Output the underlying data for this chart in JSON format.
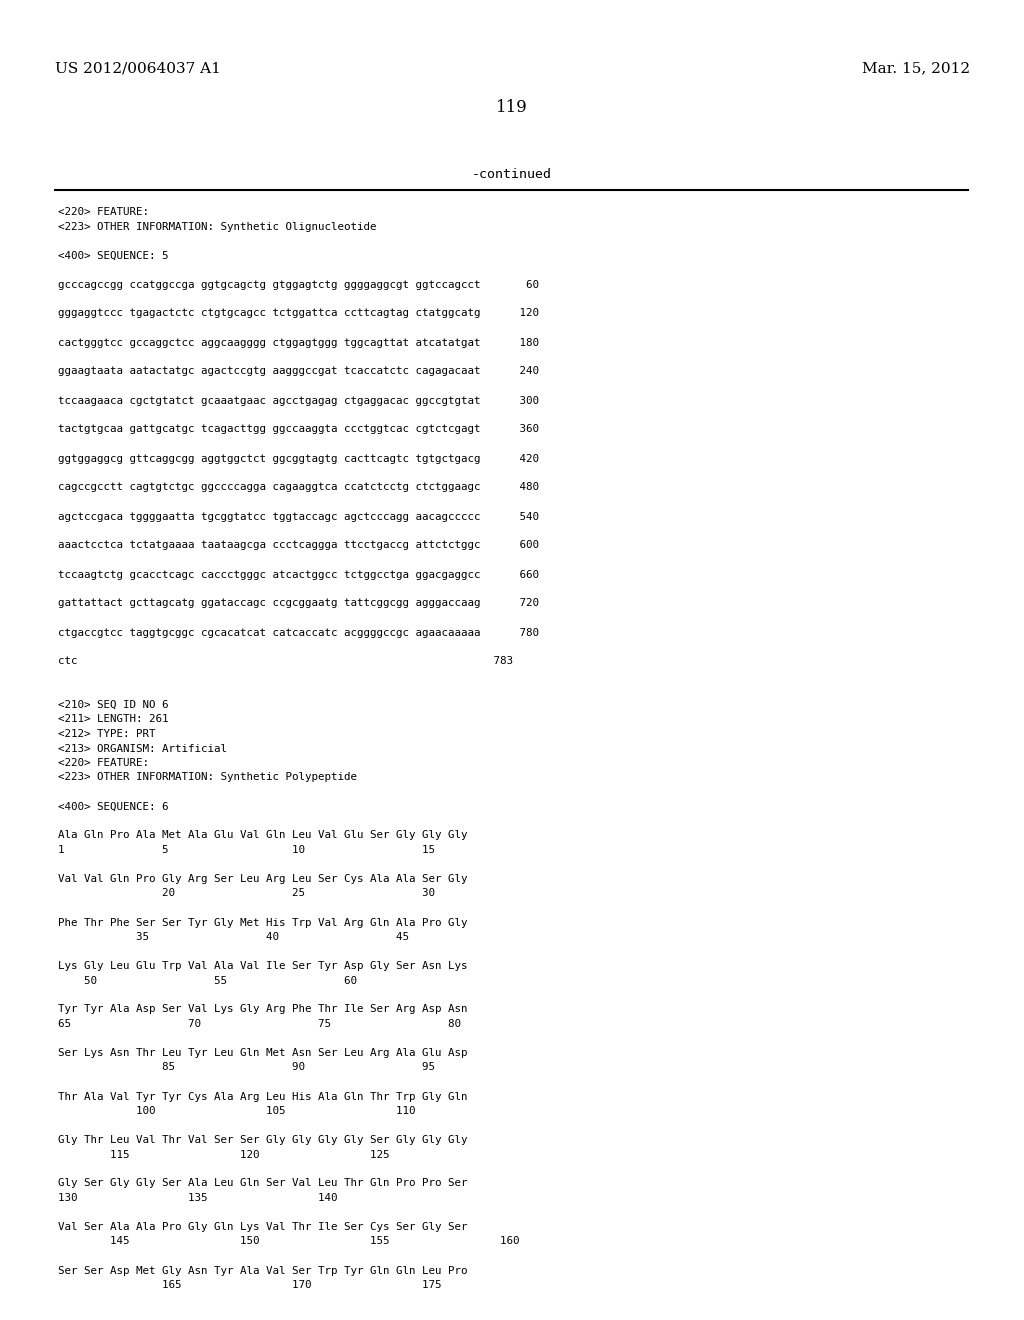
{
  "header_left": "US 2012/0064037 A1",
  "header_right": "Mar. 15, 2012",
  "page_number": "119",
  "continued_label": "-continued",
  "background_color": "#ffffff",
  "text_color": "#000000",
  "content_lines": [
    "<220> FEATURE:",
    "<223> OTHER INFORMATION: Synthetic Olignucleotide",
    "",
    "<400> SEQUENCE: 5",
    "",
    "gcccagccgg ccatggccga ggtgcagctg gtggagtctg ggggaggcgt ggtccagcct       60",
    "",
    "gggaggtccc tgagactctc ctgtgcagcc tctggattca ccttcagtag ctatggcatg      120",
    "",
    "cactgggtcc gccaggctcc aggcaagggg ctggagtggg tggcagttat atcatatgat      180",
    "",
    "ggaagtaata aatactatgc agactccgtg aagggccgat tcaccatctc cagagacaat      240",
    "",
    "tccaagaaca cgctgtatct gcaaatgaac agcctgagag ctgaggacac ggccgtgtat      300",
    "",
    "tactgtgcaa gattgcatgc tcagacttgg ggccaaggta ccctggtcac cgtctcgagt      360",
    "",
    "ggtggaggcg gttcaggcgg aggtggctct ggcggtagtg cacttcagtc tgtgctgacg      420",
    "",
    "cagccgcctt cagtgtctgc ggccccagga cagaaggtca ccatctcctg ctctggaagc      480",
    "",
    "agctccgaca tggggaatta tgcggtatcc tggtaccagc agctcccagg aacagccccc      540",
    "",
    "aaactcctca tctatgaaaa taataagcga ccctcaggga ttcctgaccg attctctggc      600",
    "",
    "tccaagtctg gcacctcagc caccctgggc atcactggcc tctggcctga ggacgaggcc      660",
    "",
    "gattattact gcttagcatg ggataccagc ccgcggaatg tattcggcgg agggaccaag      720",
    "",
    "ctgaccgtcc taggtgcggc cgcacatcat catcaccatc acggggccgc agaacaaaaa      780",
    "",
    "ctc                                                                783",
    "",
    "",
    "<210> SEQ ID NO 6",
    "<211> LENGTH: 261",
    "<212> TYPE: PRT",
    "<213> ORGANISM: Artificial",
    "<220> FEATURE:",
    "<223> OTHER INFORMATION: Synthetic Polypeptide",
    "",
    "<400> SEQUENCE: 6",
    "",
    "Ala Gln Pro Ala Met Ala Glu Val Gln Leu Val Glu Ser Gly Gly Gly",
    "1               5                   10                  15",
    "",
    "Val Val Gln Pro Gly Arg Ser Leu Arg Leu Ser Cys Ala Ala Ser Gly",
    "                20                  25                  30",
    "",
    "Phe Thr Phe Ser Ser Tyr Gly Met His Trp Val Arg Gln Ala Pro Gly",
    "            35                  40                  45",
    "",
    "Lys Gly Leu Glu Trp Val Ala Val Ile Ser Tyr Asp Gly Ser Asn Lys",
    "    50                  55                  60",
    "",
    "Tyr Tyr Ala Asp Ser Val Lys Gly Arg Phe Thr Ile Ser Arg Asp Asn",
    "65                  70                  75                  80",
    "",
    "Ser Lys Asn Thr Leu Tyr Leu Gln Met Asn Ser Leu Arg Ala Glu Asp",
    "                85                  90                  95",
    "",
    "Thr Ala Val Tyr Tyr Cys Ala Arg Leu His Ala Gln Thr Trp Gly Gln",
    "            100                 105                 110",
    "",
    "Gly Thr Leu Val Thr Val Ser Ser Gly Gly Gly Gly Ser Gly Gly Gly",
    "        115                 120                 125",
    "",
    "Gly Ser Gly Gly Ser Ala Leu Gln Ser Val Leu Thr Gln Pro Pro Ser",
    "130                 135                 140",
    "",
    "Val Ser Ala Ala Pro Gly Gln Lys Val Thr Ile Ser Cys Ser Gly Ser",
    "        145                 150                 155                 160",
    "",
    "Ser Ser Asp Met Gly Asn Tyr Ala Val Ser Trp Tyr Gln Gln Leu Pro",
    "                165                 170                 175"
  ]
}
